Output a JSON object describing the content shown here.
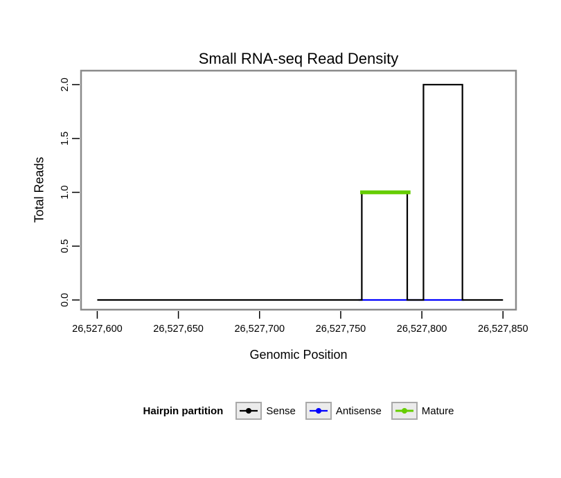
{
  "chart_data": {
    "type": "line",
    "title": "Small RNA-seq Read Density",
    "xlabel": "Genomic Position",
    "ylabel": "Total Reads",
    "xlim": [
      26527590,
      26527858
    ],
    "ylim": [
      -0.09,
      2.13
    ],
    "grid": false,
    "x_ticks": [
      {
        "value": 26527600,
        "label": "26,527,600"
      },
      {
        "value": 26527650,
        "label": "26,527,650"
      },
      {
        "value": 26527700,
        "label": "26,527,700"
      },
      {
        "value": 26527750,
        "label": "26,527,750"
      },
      {
        "value": 26527800,
        "label": "26,527,800"
      },
      {
        "value": 26527850,
        "label": "26,527,850"
      }
    ],
    "y_ticks": [
      {
        "value": 0.0,
        "label": "0.0"
      },
      {
        "value": 0.5,
        "label": "0.5"
      },
      {
        "value": 1.0,
        "label": "1.0"
      },
      {
        "value": 1.5,
        "label": "1.5"
      },
      {
        "value": 2.0,
        "label": "2.0"
      }
    ],
    "series": [
      {
        "name": "Antisense",
        "color": "#0000ff",
        "width": 2.2,
        "points": [
          [
            26527761,
            0
          ],
          [
            26527826,
            0
          ]
        ]
      },
      {
        "name": "Sense",
        "color": "#000000",
        "width": 2.2,
        "points": [
          [
            26527600,
            0
          ],
          [
            26527763,
            0
          ],
          [
            26527763,
            1
          ],
          [
            26527791,
            1
          ],
          [
            26527791,
            0
          ],
          [
            26527801,
            0
          ],
          [
            26527801,
            2
          ],
          [
            26527825,
            2
          ],
          [
            26527825,
            0
          ],
          [
            26527850,
            0
          ]
        ]
      },
      {
        "name": "Mature",
        "color": "#66cd00",
        "width": 5.5,
        "points": [
          [
            26527762,
            1
          ],
          [
            26527793,
            1
          ]
        ]
      }
    ],
    "legend": {
      "title": "Hairpin partition",
      "position": "bottom",
      "entries": [
        {
          "label": "Sense",
          "color": "#000000",
          "key_width": 2.2
        },
        {
          "label": "Antisense",
          "color": "#0000ff",
          "key_width": 2.2
        },
        {
          "label": "Mature",
          "color": "#66cd00",
          "key_width": 3
        }
      ]
    },
    "style": {
      "plot_border_color": "#8a8a8a",
      "tick_color": "#000000",
      "background": "#ffffff"
    }
  }
}
